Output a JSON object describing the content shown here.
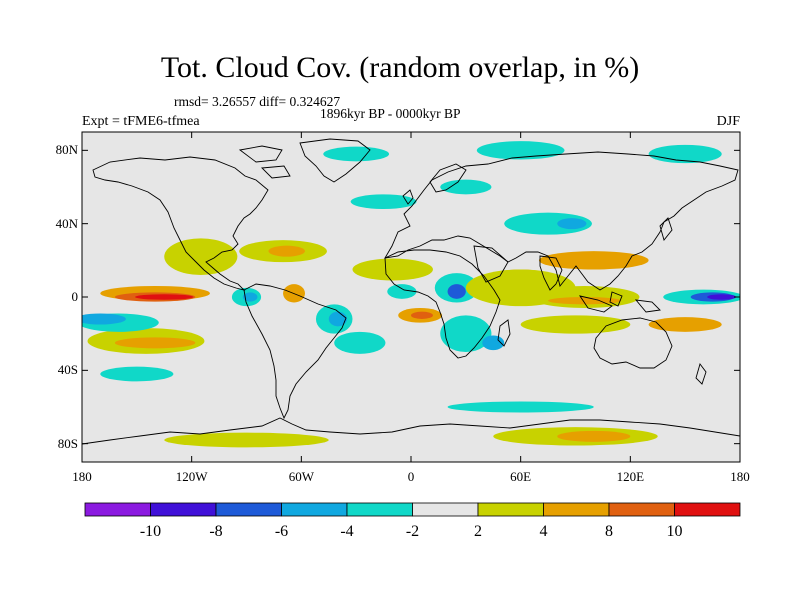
{
  "header": {
    "title": "Tot. Cloud Cov. (random overlap, in %)",
    "stats": "rmsd= 3.26557  diff= 0.324627",
    "period": "1896kyr BP - 0000kyr BP",
    "experiment": "Expt = tFME6-tfmea",
    "season": "DJF"
  },
  "map": {
    "lat_range": [
      -90,
      90
    ],
    "lon_range": [
      -180,
      180
    ],
    "lat_ticks": [
      {
        "value": 80,
        "label": "80N"
      },
      {
        "value": 40,
        "label": "40N"
      },
      {
        "value": 0,
        "label": "0"
      },
      {
        "value": -40,
        "label": "40S"
      },
      {
        "value": -80,
        "label": "80S"
      }
    ],
    "lon_ticks": [
      {
        "value": -180,
        "label": "180"
      },
      {
        "value": -120,
        "label": "120W"
      },
      {
        "value": -60,
        "label": "60W"
      },
      {
        "value": 0,
        "label": "0"
      },
      {
        "value": 60,
        "label": "60E"
      },
      {
        "value": 120,
        "label": "120E"
      },
      {
        "value": 180,
        "label": "180"
      }
    ],
    "fill_regions": [
      {
        "level": "4to8",
        "lon": -140,
        "lat": 2,
        "rx": 30,
        "ry": 4
      },
      {
        "level": "8to10",
        "lon": -140,
        "lat": 0,
        "rx": 22,
        "ry": 2.5
      },
      {
        "level": "gt10",
        "lon": -135,
        "lat": 0,
        "rx": 16,
        "ry": 1.5
      },
      {
        "level": "2to4",
        "lon": -145,
        "lat": -24,
        "rx": 32,
        "ry": 7
      },
      {
        "level": "4to8",
        "lon": -140,
        "lat": -25,
        "rx": 22,
        "ry": 3
      },
      {
        "level": "m4tom2",
        "lon": -160,
        "lat": -14,
        "rx": 22,
        "ry": 5
      },
      {
        "level": "m6tom4",
        "lon": -170,
        "lat": -12,
        "rx": 14,
        "ry": 3
      },
      {
        "level": "m4tom2",
        "lon": -150,
        "lat": -42,
        "rx": 20,
        "ry": 4
      },
      {
        "level": "2to4",
        "lon": -115,
        "lat": 22,
        "rx": 20,
        "ry": 10
      },
      {
        "level": "m4tom2",
        "lon": -90,
        "lat": 0,
        "rx": 8,
        "ry": 5
      },
      {
        "level": "m6tom4",
        "lon": -88,
        "lat": 0,
        "rx": 4,
        "ry": 2.5
      },
      {
        "level": "2to4",
        "lon": -70,
        "lat": 25,
        "rx": 24,
        "ry": 6
      },
      {
        "level": "4to8",
        "lon": -68,
        "lat": 25,
        "rx": 10,
        "ry": 3
      },
      {
        "level": "4to8",
        "lon": -64,
        "lat": 2,
        "rx": 6,
        "ry": 5
      },
      {
        "level": "m4tom2",
        "lon": -42,
        "lat": -12,
        "rx": 10,
        "ry": 8
      },
      {
        "level": "m6tom4",
        "lon": -40,
        "lat": -12,
        "rx": 5,
        "ry": 4
      },
      {
        "level": "m4tom2",
        "lon": -28,
        "lat": -25,
        "rx": 14,
        "ry": 6
      },
      {
        "level": "2to4",
        "lon": -10,
        "lat": 15,
        "rx": 22,
        "ry": 6
      },
      {
        "level": "m4tom2",
        "lon": -15,
        "lat": 52,
        "rx": 18,
        "ry": 4
      },
      {
        "level": "m4tom2",
        "lon": -5,
        "lat": 3,
        "rx": 8,
        "ry": 4
      },
      {
        "level": "4to8",
        "lon": 5,
        "lat": -10,
        "rx": 12,
        "ry": 4
      },
      {
        "level": "8to10",
        "lon": 6,
        "lat": -10,
        "rx": 6,
        "ry": 2
      },
      {
        "level": "m4tom2",
        "lon": 25,
        "lat": 5,
        "rx": 12,
        "ry": 8
      },
      {
        "level": "m8tom6",
        "lon": 25,
        "lat": 3,
        "rx": 5,
        "ry": 4
      },
      {
        "level": "m4tom2",
        "lon": 30,
        "lat": -20,
        "rx": 14,
        "ry": 10
      },
      {
        "level": "m6tom4",
        "lon": 45,
        "lat": -25,
        "rx": 6,
        "ry": 4
      },
      {
        "level": "4to8",
        "lon": 60,
        "lat": 10,
        "rx": 20,
        "ry": 5
      },
      {
        "level": "2to4",
        "lon": 60,
        "lat": 5,
        "rx": 30,
        "ry": 10
      },
      {
        "level": "m4tom2",
        "lon": 75,
        "lat": 40,
        "rx": 24,
        "ry": 6
      },
      {
        "level": "m6tom4",
        "lon": 88,
        "lat": 40,
        "rx": 8,
        "ry": 3
      },
      {
        "level": "4to8",
        "lon": 100,
        "lat": 20,
        "rx": 30,
        "ry": 5
      },
      {
        "level": "2to4",
        "lon": 95,
        "lat": 0,
        "rx": 30,
        "ry": 6
      },
      {
        "level": "4to8",
        "lon": 95,
        "lat": -2,
        "rx": 20,
        "ry": 2
      },
      {
        "level": "2to4",
        "lon": 90,
        "lat": -15,
        "rx": 30,
        "ry": 5
      },
      {
        "level": "m4tom2",
        "lon": 160,
        "lat": 0,
        "rx": 22,
        "ry": 4
      },
      {
        "level": "m8tom6",
        "lon": 165,
        "lat": 0,
        "rx": 12,
        "ry": 2.5
      },
      {
        "level": "m10tom8",
        "lon": 170,
        "lat": 0,
        "rx": 8,
        "ry": 1.5
      },
      {
        "level": "4to8",
        "lon": 150,
        "lat": -15,
        "rx": 20,
        "ry": 4
      },
      {
        "level": "m4tom2",
        "lon": 60,
        "lat": 80,
        "rx": 24,
        "ry": 5
      },
      {
        "level": "m4tom2",
        "lon": 150,
        "lat": 78,
        "rx": 20,
        "ry": 5
      },
      {
        "level": "m4tom2",
        "lon": -30,
        "lat": 78,
        "rx": 18,
        "ry": 4
      },
      {
        "level": "m4tom2",
        "lon": 30,
        "lat": 60,
        "rx": 14,
        "ry": 4
      },
      {
        "level": "2to4",
        "lon": -90,
        "lat": -78,
        "rx": 45,
        "ry": 4
      },
      {
        "level": "2to4",
        "lon": 90,
        "lat": -76,
        "rx": 45,
        "ry": 5
      },
      {
        "level": "4to8",
        "lon": 100,
        "lat": -76,
        "rx": 20,
        "ry": 3
      },
      {
        "level": "m4tom2",
        "lon": 60,
        "lat": -60,
        "rx": 40,
        "ry": 3
      }
    ]
  },
  "colorbar": {
    "labels": [
      "-10",
      "-8",
      "-6",
      "-4",
      "-2",
      "2",
      "4",
      "8",
      "10"
    ],
    "colors": [
      "#8b1ae0",
      "#4010d8",
      "#1e5ad8",
      "#10a8e0",
      "#10d8c8",
      "#e6e6e6",
      "#c8d200",
      "#e6a000",
      "#e06010",
      "#e01010"
    ]
  },
  "level_colors": {
    "lt_m10": "#8b1ae0",
    "m10tom8": "#4010d8",
    "m8tom6": "#1e5ad8",
    "m6tom4": "#10a8e0",
    "m4tom2": "#10d8c8",
    "m2to2": "#e6e6e6",
    "2to4": "#c8d200",
    "4to8": "#e6a000",
    "8to10": "#e06010",
    "gt10": "#e01010"
  }
}
